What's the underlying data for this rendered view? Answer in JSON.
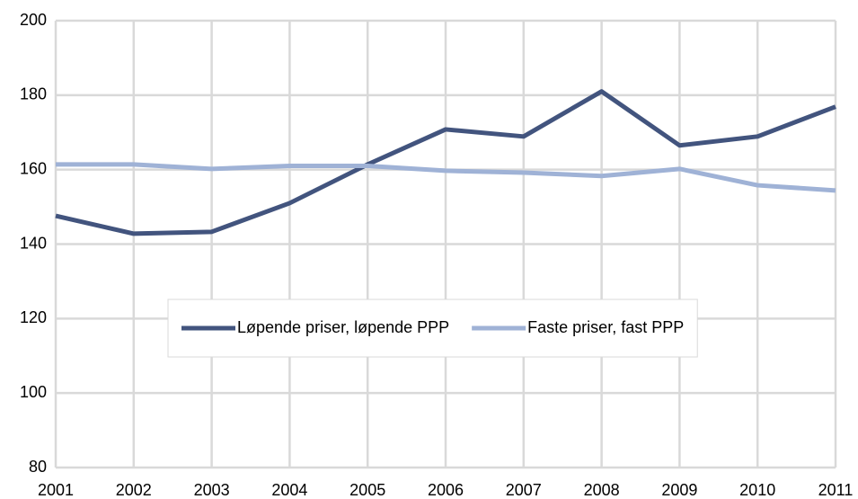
{
  "chart_data": {
    "type": "line",
    "categories": [
      "2001",
      "2002",
      "2003",
      "2004",
      "2005",
      "2006",
      "2007",
      "2008",
      "2009",
      "2010",
      "2011"
    ],
    "series": [
      {
        "name": "Løpende priser, løpende PPP",
        "color": "#42547e",
        "values": [
          147.6,
          142.8,
          143.3,
          151,
          161.4,
          170.8,
          168.9,
          181,
          166.5,
          168.9,
          176.9
        ]
      },
      {
        "name": "Faste priser, fast PPP",
        "color": "#9fb2d6",
        "values": [
          161.4,
          161.4,
          160.2,
          161,
          161,
          159.7,
          159.2,
          158.3,
          160.2,
          155.8,
          154.4
        ]
      }
    ],
    "ylim": [
      80,
      200
    ],
    "yticks": [
      80,
      100,
      120,
      140,
      160,
      180,
      200
    ],
    "grid": true,
    "legend": "center"
  }
}
